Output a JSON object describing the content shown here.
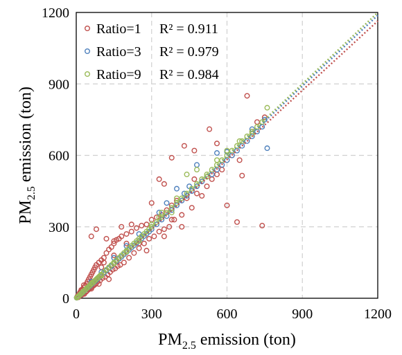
{
  "chart_data": {
    "type": "scatter",
    "xlabel": {
      "base": "PM",
      "sub": "2.5",
      "rest": " emission (ton)"
    },
    "ylabel": {
      "base": "PM",
      "sub": "2.5",
      "rest": " emission (ton)"
    },
    "xlim": [
      0,
      1200
    ],
    "ylim": [
      0,
      1200
    ],
    "xticks": [
      "0",
      "300",
      "600",
      "900",
      "1200"
    ],
    "yticks": [
      "0",
      "300",
      "600",
      "900",
      "1200"
    ],
    "tick_values": [
      0,
      300,
      600,
      900,
      1200
    ],
    "grid": true,
    "legend_position": "top-left",
    "trendline_style": "dotted",
    "series": [
      {
        "name": "Ratio=1",
        "r2_label": "R² = 0.911",
        "color": "#c0504d",
        "trend_slope": 0.97,
        "points": [
          [
            2,
            3
          ],
          [
            5,
            9
          ],
          [
            8,
            4
          ],
          [
            10,
            16
          ],
          [
            12,
            8
          ],
          [
            15,
            22
          ],
          [
            18,
            12
          ],
          [
            20,
            30
          ],
          [
            22,
            14
          ],
          [
            25,
            38
          ],
          [
            28,
            20
          ],
          [
            30,
            45
          ],
          [
            32,
            18
          ],
          [
            35,
            50
          ],
          [
            38,
            26
          ],
          [
            40,
            60
          ],
          [
            42,
            30
          ],
          [
            45,
            70
          ],
          [
            48,
            36
          ],
          [
            50,
            80
          ],
          [
            52,
            40
          ],
          [
            55,
            90
          ],
          [
            58,
            44
          ],
          [
            60,
            100
          ],
          [
            62,
            48
          ],
          [
            65,
            110
          ],
          [
            68,
            52
          ],
          [
            70,
            120
          ],
          [
            72,
            56
          ],
          [
            75,
            130
          ],
          [
            78,
            60
          ],
          [
            80,
            140
          ],
          [
            85,
            70
          ],
          [
            90,
            150
          ],
          [
            95,
            75
          ],
          [
            100,
            160
          ],
          [
            105,
            85
          ],
          [
            110,
            170
          ],
          [
            115,
            90
          ],
          [
            120,
            190
          ],
          [
            125,
            100
          ],
          [
            130,
            205
          ],
          [
            135,
            110
          ],
          [
            140,
            215
          ],
          [
            145,
            120
          ],
          [
            150,
            230
          ],
          [
            155,
            125
          ],
          [
            160,
            245
          ],
          [
            165,
            135
          ],
          [
            170,
            250
          ],
          [
            175,
            140
          ],
          [
            180,
            260
          ],
          [
            190,
            150
          ],
          [
            200,
            270
          ],
          [
            210,
            170
          ],
          [
            220,
            280
          ],
          [
            230,
            190
          ],
          [
            240,
            295
          ],
          [
            250,
            210
          ],
          [
            260,
            305
          ],
          [
            270,
            230
          ],
          [
            280,
            310
          ],
          [
            290,
            250
          ],
          [
            300,
            330
          ],
          [
            310,
            260
          ],
          [
            320,
            340
          ],
          [
            330,
            280
          ],
          [
            340,
            350
          ],
          [
            350,
            290
          ],
          [
            360,
            370
          ],
          [
            370,
            300
          ],
          [
            380,
            390
          ],
          [
            390,
            330
          ],
          [
            400,
            410
          ],
          [
            420,
            350
          ],
          [
            440,
            420
          ],
          [
            460,
            380
          ],
          [
            480,
            440
          ],
          [
            500,
            430
          ],
          [
            520,
            470
          ],
          [
            540,
            500
          ],
          [
            560,
            520
          ],
          [
            580,
            540
          ],
          [
            600,
            390
          ],
          [
            620,
            600
          ],
          [
            640,
            320
          ],
          [
            650,
            580
          ],
          [
            660,
            515
          ],
          [
            680,
            850
          ],
          [
            700,
            700
          ],
          [
            720,
            740
          ],
          [
            740,
            305
          ],
          [
            750,
            760
          ],
          [
            60,
            260
          ],
          [
            80,
            290
          ],
          [
            120,
            250
          ],
          [
            150,
            240
          ],
          [
            180,
            300
          ],
          [
            200,
            230
          ],
          [
            330,
            500
          ],
          [
            380,
            590
          ],
          [
            430,
            640
          ],
          [
            470,
            620
          ],
          [
            530,
            710
          ],
          [
            250,
            230
          ],
          [
            150,
            180
          ],
          [
            100,
            130
          ],
          [
            40,
            30
          ],
          [
            30,
            55
          ],
          [
            20,
            35
          ],
          [
            15,
            25
          ],
          [
            280,
            200
          ],
          [
            350,
            260
          ],
          [
            420,
            300
          ],
          [
            130,
            80
          ],
          [
            90,
            60
          ],
          [
            60,
            40
          ],
          [
            110,
            150
          ],
          [
            220,
            310
          ],
          [
            300,
            400
          ],
          [
            350,
            480
          ],
          [
            380,
            330
          ],
          [
            560,
            650
          ],
          [
            470,
            500
          ]
        ]
      },
      {
        "name": "Ratio=3",
        "r2_label": "R² = 0.979",
        "color": "#4f81bd",
        "trend_slope": 0.99,
        "points": [
          [
            2,
            2
          ],
          [
            5,
            5
          ],
          [
            8,
            7
          ],
          [
            10,
            10
          ],
          [
            15,
            14
          ],
          [
            20,
            19
          ],
          [
            25,
            24
          ],
          [
            30,
            29
          ],
          [
            35,
            34
          ],
          [
            40,
            39
          ],
          [
            45,
            44
          ],
          [
            50,
            48
          ],
          [
            55,
            53
          ],
          [
            60,
            58
          ],
          [
            65,
            63
          ],
          [
            70,
            68
          ],
          [
            75,
            72
          ],
          [
            80,
            77
          ],
          [
            85,
            82
          ],
          [
            90,
            87
          ],
          [
            95,
            92
          ],
          [
            100,
            96
          ],
          [
            110,
            106
          ],
          [
            120,
            116
          ],
          [
            130,
            126
          ],
          [
            140,
            135
          ],
          [
            150,
            145
          ],
          [
            160,
            155
          ],
          [
            170,
            165
          ],
          [
            180,
            174
          ],
          [
            190,
            184
          ],
          [
            200,
            193
          ],
          [
            210,
            203
          ],
          [
            220,
            213
          ],
          [
            230,
            222
          ],
          [
            240,
            232
          ],
          [
            250,
            242
          ],
          [
            260,
            251
          ],
          [
            270,
            261
          ],
          [
            280,
            271
          ],
          [
            290,
            280
          ],
          [
            300,
            290
          ],
          [
            320,
            310
          ],
          [
            340,
            330
          ],
          [
            360,
            345
          ],
          [
            380,
            370
          ],
          [
            400,
            390
          ],
          [
            420,
            410
          ],
          [
            440,
            430
          ],
          [
            460,
            450
          ],
          [
            480,
            470
          ],
          [
            500,
            490
          ],
          [
            520,
            510
          ],
          [
            540,
            520
          ],
          [
            560,
            540
          ],
          [
            580,
            560
          ],
          [
            600,
            580
          ],
          [
            620,
            600
          ],
          [
            640,
            620
          ],
          [
            660,
            640
          ],
          [
            680,
            660
          ],
          [
            700,
            680
          ],
          [
            720,
            700
          ],
          [
            740,
            720
          ],
          [
            750,
            750
          ],
          [
            760,
            630
          ],
          [
            400,
            460
          ],
          [
            450,
            470
          ],
          [
            480,
            560
          ],
          [
            560,
            610
          ],
          [
            600,
            615
          ],
          [
            700,
            710
          ],
          [
            330,
            360
          ],
          [
            250,
            270
          ],
          [
            150,
            170
          ],
          [
            100,
            110
          ],
          [
            60,
            70
          ],
          [
            200,
            220
          ],
          [
            300,
            300
          ],
          [
            360,
            400
          ],
          [
            430,
            440
          ]
        ]
      },
      {
        "name": "Ratio=9",
        "r2_label": "R² = 0.984",
        "color": "#9bbb59",
        "trend_slope": 1.0,
        "points": [
          [
            2,
            2
          ],
          [
            5,
            5
          ],
          [
            8,
            8
          ],
          [
            10,
            10
          ],
          [
            15,
            15
          ],
          [
            20,
            20
          ],
          [
            25,
            25
          ],
          [
            30,
            30
          ],
          [
            35,
            35
          ],
          [
            40,
            40
          ],
          [
            45,
            45
          ],
          [
            50,
            50
          ],
          [
            55,
            55
          ],
          [
            60,
            60
          ],
          [
            65,
            65
          ],
          [
            70,
            70
          ],
          [
            75,
            75
          ],
          [
            80,
            80
          ],
          [
            85,
            85
          ],
          [
            90,
            90
          ],
          [
            95,
            95
          ],
          [
            100,
            100
          ],
          [
            110,
            110
          ],
          [
            120,
            120
          ],
          [
            130,
            130
          ],
          [
            140,
            140
          ],
          [
            150,
            150
          ],
          [
            160,
            160
          ],
          [
            170,
            170
          ],
          [
            180,
            180
          ],
          [
            190,
            190
          ],
          [
            200,
            200
          ],
          [
            210,
            210
          ],
          [
            220,
            220
          ],
          [
            230,
            230
          ],
          [
            240,
            240
          ],
          [
            250,
            250
          ],
          [
            260,
            260
          ],
          [
            270,
            270
          ],
          [
            280,
            280
          ],
          [
            290,
            290
          ],
          [
            300,
            300
          ],
          [
            320,
            320
          ],
          [
            340,
            340
          ],
          [
            360,
            360
          ],
          [
            380,
            380
          ],
          [
            400,
            400
          ],
          [
            420,
            420
          ],
          [
            440,
            440
          ],
          [
            460,
            460
          ],
          [
            480,
            480
          ],
          [
            500,
            500
          ],
          [
            520,
            520
          ],
          [
            540,
            540
          ],
          [
            560,
            560
          ],
          [
            580,
            580
          ],
          [
            600,
            600
          ],
          [
            620,
            620
          ],
          [
            640,
            640
          ],
          [
            660,
            660
          ],
          [
            680,
            680
          ],
          [
            700,
            700
          ],
          [
            720,
            720
          ],
          [
            740,
            740
          ],
          [
            760,
            800
          ],
          [
            440,
            520
          ],
          [
            480,
            540
          ],
          [
            560,
            580
          ],
          [
            600,
            620
          ],
          [
            380,
            360
          ],
          [
            330,
            340
          ],
          [
            250,
            240
          ],
          [
            150,
            145
          ],
          [
            100,
            95
          ],
          [
            60,
            62
          ],
          [
            200,
            195
          ],
          [
            300,
            310
          ],
          [
            340,
            360
          ],
          [
            400,
            420
          ],
          [
            520,
            510
          ],
          [
            650,
            660
          ],
          [
            700,
            690
          ]
        ]
      }
    ]
  }
}
